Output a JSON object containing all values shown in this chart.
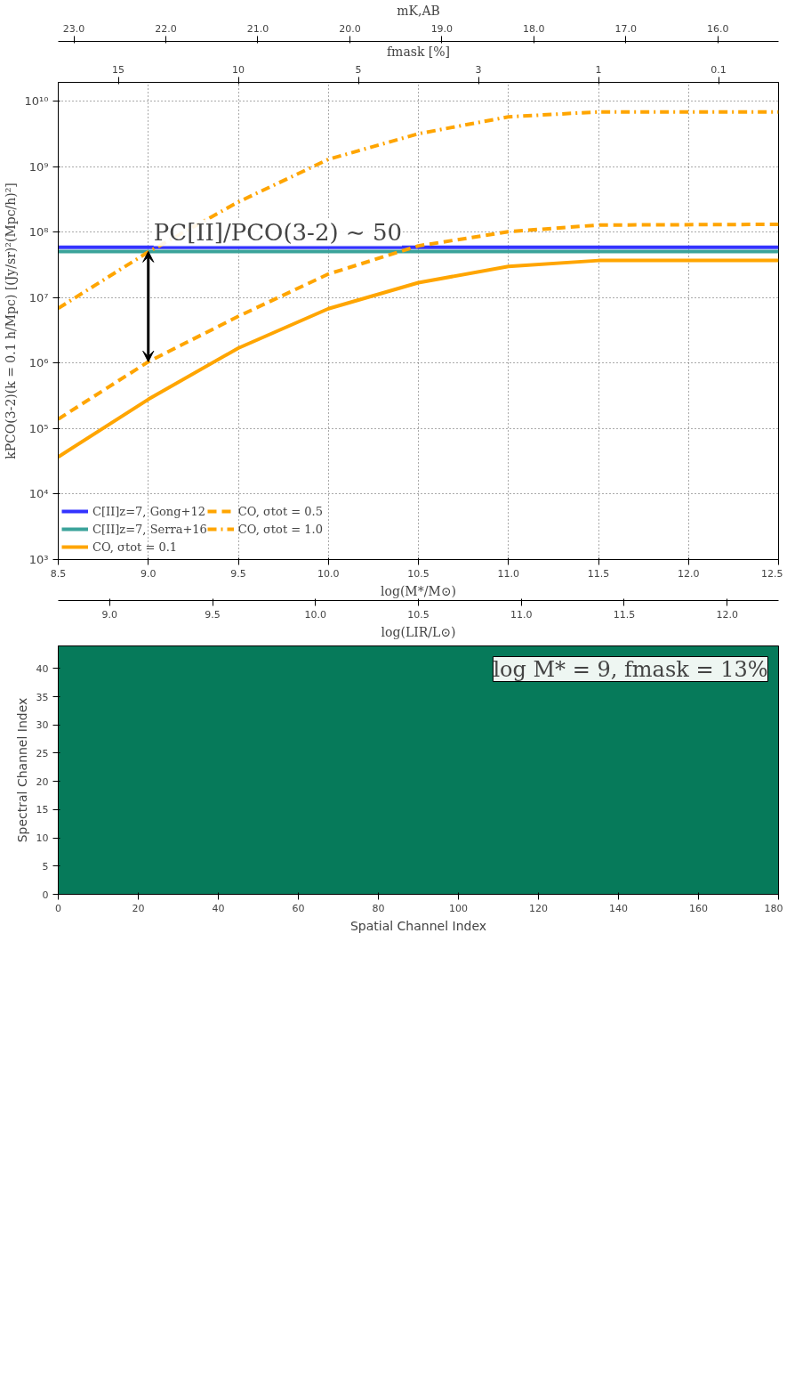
{
  "chart_data": [
    {
      "type": "line",
      "xlabel": "log(M*/M⊙)",
      "ylabel": "kPCO(3-2)(k = 0.1 h/Mpc) [(Jy/sr)²(Mpc/h)²]",
      "x2label": "mK,AB",
      "log": "y",
      "xlim": [
        8.5,
        12.5
      ],
      "xticks": [
        {
          "value": 8.5,
          "label": "8.5"
        },
        {
          "value": 9.0,
          "label": "9.0"
        },
        {
          "value": 9.5,
          "label": "9.5"
        },
        {
          "value": 10.0,
          "label": "10.0"
        },
        {
          "value": 10.5,
          "label": "10.5"
        },
        {
          "value": 11.0,
          "label": "11.0"
        },
        {
          "value": 11.5,
          "label": "11.5"
        },
        {
          "value": 12.0,
          "label": "12.0"
        },
        {
          "value": 12.5,
          "label": "12.5"
        }
      ],
      "x2lim": [
        23.17,
        15.34
      ],
      "x2ticks": [
        {
          "value": 23,
          "label": "23.0"
        },
        {
          "value": 22,
          "label": "22.0"
        },
        {
          "value": 21,
          "label": "21.0"
        },
        {
          "value": 20,
          "label": "20.0"
        },
        {
          "value": 19,
          "label": "19.0"
        },
        {
          "value": 18,
          "label": "18.0"
        },
        {
          "value": 17,
          "label": "17.0"
        },
        {
          "value": 16,
          "label": "16.0"
        }
      ],
      "ylim": [
        1000,
        19500000000
      ],
      "yticks": [
        {
          "value": 1000,
          "label": "10³"
        },
        {
          "value": 10000,
          "label": "10⁴"
        },
        {
          "value": 100000,
          "label": "10⁵"
        },
        {
          "value": 1000000,
          "label": "10⁶"
        },
        {
          "value": 10000000,
          "label": "10⁷"
        },
        {
          "value": 100000000,
          "label": "10⁸"
        },
        {
          "value": 1000000000,
          "label": "10⁹"
        },
        {
          "value": 10000000000,
          "label": "10¹⁰"
        }
      ],
      "grid": true,
      "legend": "bottom left",
      "x": [
        8.5,
        9.0,
        9.5,
        10.0,
        10.5,
        11.0,
        11.5,
        12.5
      ],
      "series": [
        {
          "name": "C[II]z=7, Gong+12",
          "color": "#3333ff",
          "line_style": "solid",
          "values": [
            59000000,
            59000000,
            59000000,
            59000000,
            59000000,
            59000000,
            59000000,
            59000000
          ]
        },
        {
          "name": "C[II]z=7, Serra+16",
          "color": "#3aa39a",
          "line_style": "solid",
          "values": [
            51000000,
            51000000,
            51000000,
            51000000,
            51000000,
            51000000,
            51000000,
            51000000
          ]
        },
        {
          "name": "CO, σtot = 0.1",
          "color": "#ffa500",
          "line_style": "solid",
          "values": [
            37000,
            280000,
            1700000,
            6800000,
            17000000,
            30000000,
            37000000,
            37000000
          ]
        },
        {
          "name": "CO, σtot = 0.5",
          "color": "#ffa500",
          "line_style": "dashed",
          "values": [
            140000,
            1050000,
            5200000,
            23000000,
            62000000,
            102000000,
            129000000,
            132000000
          ]
        },
        {
          "name": "CO, σtot = 1.0",
          "color": "#ffa500",
          "line_style": "dashdot",
          "values": [
            6900000,
            50000000,
            290000000,
            1300000000,
            3200000000,
            5800000000,
            6900000000,
            6900000000
          ]
        }
      ],
      "annotations": [
        {
          "text": "PC[II]/PCO(3-2) ∼ 50",
          "x": 9.0,
          "y": 51000000
        },
        "fmask [%]",
        "15",
        "10",
        "5",
        "3",
        "1",
        "0.1",
        "log(LIR/L⊙)",
        "9.0",
        "9.5",
        "10.0",
        "10.5",
        "11.0",
        "11.5",
        "12.0"
      ]
    },
    {
      "type": "heatmap",
      "xlabel": "Spatial Channel Index",
      "ylabel": "Spectral Channel Index",
      "xlim": [
        0,
        180
      ],
      "xticks": [
        0,
        20,
        40,
        60,
        80,
        100,
        120,
        140,
        160,
        180
      ],
      "ylim": [
        0,
        44
      ],
      "yticks": [
        0,
        5,
        10,
        15,
        20,
        25,
        30,
        35,
        40
      ],
      "annotations": [
        "log M* = 9, fmask = 13%"
      ]
    }
  ]
}
